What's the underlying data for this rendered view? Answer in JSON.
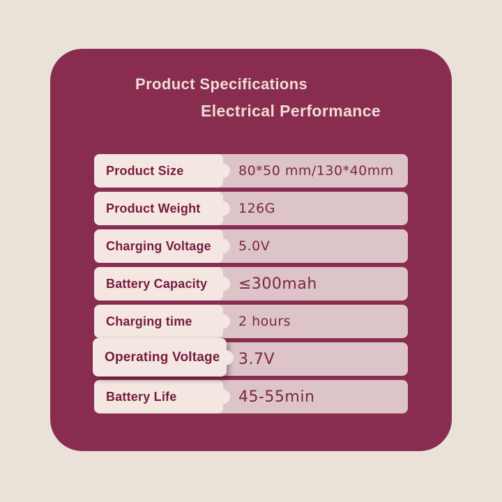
{
  "page": {
    "background_color": "#EAE2D8"
  },
  "card": {
    "background_color": "#892D50",
    "title": "Product Specifications",
    "subtitle": "Electrical Performance",
    "title_color": "#EFDCD6"
  },
  "spec_table": {
    "label_panel_color": "#F4E6E0",
    "value_panel_color": "#DDC4C9",
    "label_text_color": "#761B3F",
    "value_text_color": "#7A2640",
    "rows": [
      {
        "label": "Product Size",
        "value": "80*50 mm/130*40mm"
      },
      {
        "label": "Product Weight",
        "value": "126G"
      },
      {
        "label": "Charging Voltage",
        "value": "5.0V"
      },
      {
        "label": "Battery Capacity",
        "value": "≤300mah"
      },
      {
        "label": "Charging time",
        "value": "2 hours"
      },
      {
        "label": "Operating Voltage",
        "value": "3.7V"
      },
      {
        "label": "Battery Life",
        "value": "45-55min"
      }
    ]
  }
}
